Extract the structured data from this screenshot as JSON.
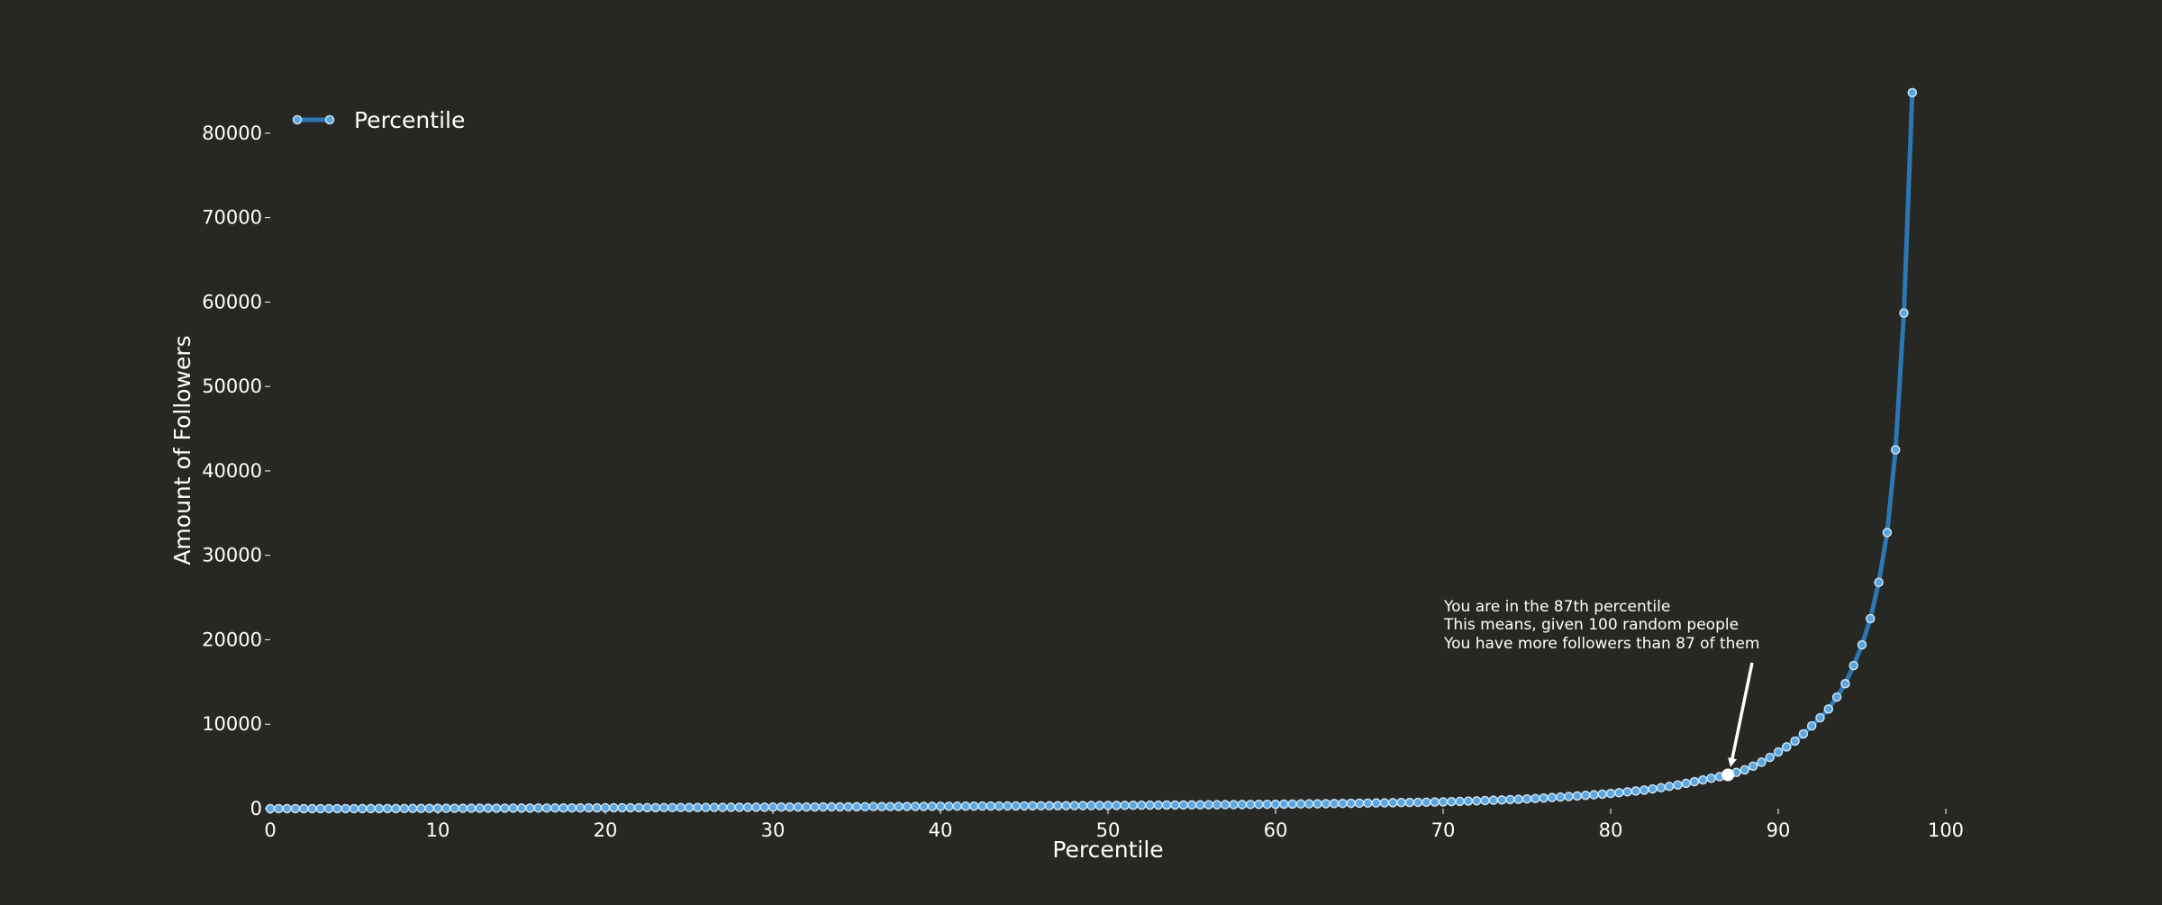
{
  "colors": {
    "background": "#272723",
    "line": "#2c77b4",
    "marker_fill": "#5ba6e0",
    "marker_edge": "#c8e3f5",
    "text": "#ffffff",
    "highlight": "#ffffff"
  },
  "chart_data": {
    "type": "line",
    "title": "",
    "xlabel": "Percentile",
    "ylabel": "Amount of Followers",
    "xlim": [
      0,
      100
    ],
    "ylim": [
      0,
      85000
    ],
    "x_ticks": [
      "0",
      "10",
      "20",
      "30",
      "40",
      "50",
      "60",
      "70",
      "80",
      "90",
      "100"
    ],
    "y_ticks": [
      "0",
      "10000",
      "20000",
      "30000",
      "40000",
      "50000",
      "60000",
      "70000",
      "80000"
    ],
    "grid": false,
    "legend_position": "top-left",
    "series": [
      {
        "name": "Percentile",
        "marker": "circle",
        "x_range": [
          0,
          98
        ],
        "x_step": 0.5,
        "approximate_points": [
          [
            0,
            0
          ],
          [
            10,
            40
          ],
          [
            20,
            100
          ],
          [
            30,
            180
          ],
          [
            40,
            280
          ],
          [
            50,
            380
          ],
          [
            60,
            520
          ],
          [
            70,
            800
          ],
          [
            75,
            1150
          ],
          [
            80,
            1800
          ],
          [
            82,
            2200
          ],
          [
            84,
            2800
          ],
          [
            85,
            3200
          ],
          [
            86,
            3600
          ],
          [
            87,
            4000
          ],
          [
            88,
            4600
          ],
          [
            89,
            5500
          ],
          [
            90,
            6700
          ],
          [
            91,
            8000
          ],
          [
            92,
            9800
          ],
          [
            93,
            11800
          ],
          [
            94,
            14800
          ],
          [
            95,
            19400
          ],
          [
            95.5,
            22500
          ],
          [
            96,
            26800
          ],
          [
            96.5,
            32700
          ],
          [
            97,
            42500
          ],
          [
            97.5,
            58700
          ],
          [
            98,
            84800
          ]
        ]
      }
    ],
    "highlight": {
      "x": 87,
      "y": 4000
    },
    "annotation": {
      "lines": [
        "You are in the 87th percentile",
        "This means, given 100 random people",
        "You have more followers than 87 of them"
      ],
      "target": {
        "x": 87,
        "y": 4000
      }
    }
  }
}
